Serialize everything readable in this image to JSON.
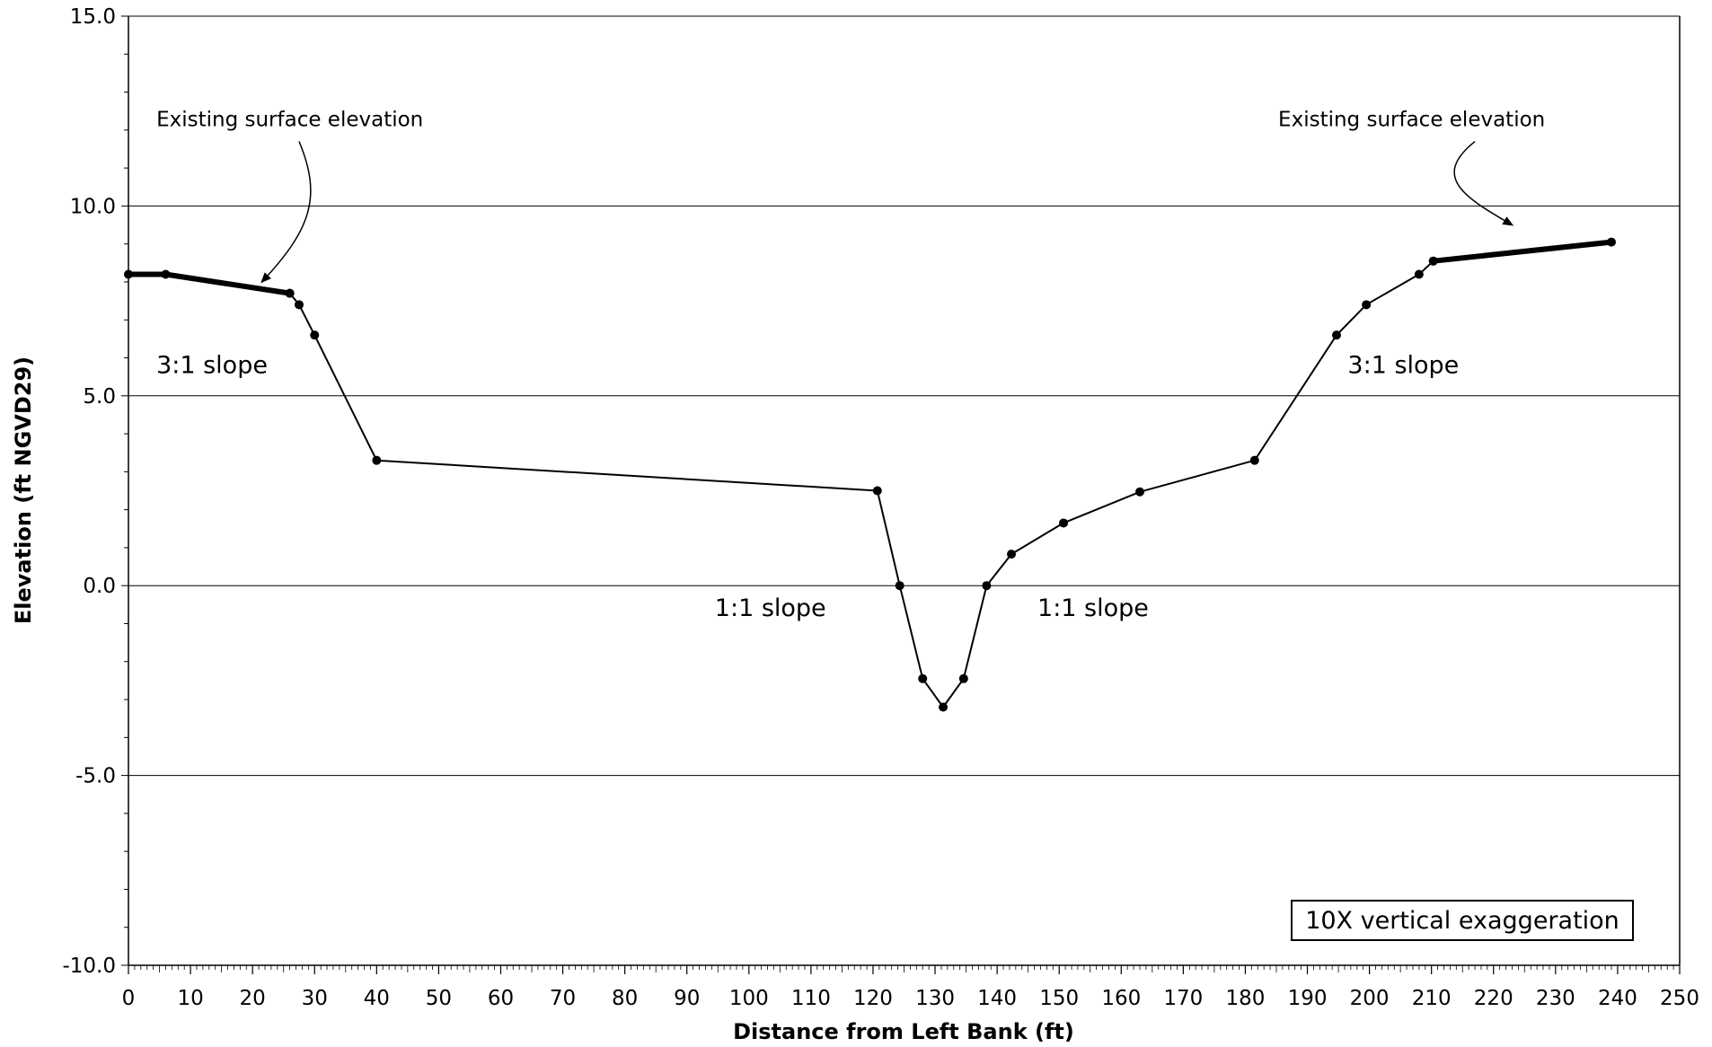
{
  "chart_data": {
    "type": "line",
    "title": "",
    "xlabel": "Distance from Left Bank (ft)",
    "ylabel": "Elevation (ft NGVD29)",
    "xlim": [
      0,
      250
    ],
    "ylim": [
      -10,
      15
    ],
    "x_ticks": [
      0,
      10,
      20,
      30,
      40,
      50,
      60,
      70,
      80,
      90,
      100,
      110,
      120,
      130,
      140,
      150,
      160,
      170,
      180,
      190,
      200,
      210,
      220,
      230,
      240,
      250
    ],
    "x_tick_labels": [
      "0",
      "10",
      "20",
      "30",
      "40",
      "50",
      "60",
      "70",
      "80",
      "90",
      "100",
      "110",
      "120",
      "130",
      "140",
      "150",
      "160",
      "170",
      "180",
      "190",
      "200",
      "210",
      "220",
      "230",
      "240",
      "250"
    ],
    "y_ticks": [
      -10,
      -5,
      0,
      5,
      10,
      15
    ],
    "y_tick_labels": [
      "-10.0",
      "-5.0",
      "0.0",
      "5.0",
      "10.0",
      "15.0"
    ],
    "grid": "horizontal",
    "series": [
      {
        "role": "existing-left",
        "values": [
          [
            0,
            8.2
          ],
          [
            6,
            8.2
          ],
          [
            26,
            7.7
          ]
        ]
      },
      {
        "role": "design-section",
        "values": [
          [
            26,
            7.7
          ],
          [
            27.5,
            7.4
          ],
          [
            30,
            6.6
          ],
          [
            40,
            3.3
          ],
          [
            120.7,
            2.5
          ],
          [
            124.3,
            0.0
          ],
          [
            128,
            -2.45
          ],
          [
            131.3,
            -3.2
          ],
          [
            134.6,
            -2.45
          ],
          [
            138.3,
            0.0
          ],
          [
            142.3,
            0.83
          ],
          [
            150.7,
            1.65
          ],
          [
            163,
            2.47
          ],
          [
            181.5,
            3.3
          ],
          [
            194.7,
            6.6
          ],
          [
            199.5,
            7.4
          ],
          [
            208,
            8.2
          ],
          [
            210.3,
            8.55
          ]
        ]
      },
      {
        "role": "existing-right",
        "values": [
          [
            210.3,
            8.55
          ],
          [
            239,
            9.05
          ]
        ]
      }
    ],
    "annotations": [
      {
        "id": "existing-left",
        "text": "Existing surface elevation",
        "x": 4.5,
        "y": 12.1,
        "arrow_from": [
          27.5,
          11.7
        ],
        "arrow_to": [
          21.5,
          8.0
        ]
      },
      {
        "id": "existing-right",
        "text": "Existing surface elevation",
        "x": 185.3,
        "y": 12.1,
        "arrow_from": [
          217,
          11.7
        ],
        "arrow_to": [
          223,
          9.5
        ]
      },
      {
        "id": "slope-left",
        "text": "3:1 slope",
        "x": 4.5,
        "y": 5.6
      },
      {
        "id": "slope-right",
        "text": "3:1 slope",
        "x": 196.5,
        "y": 5.6
      },
      {
        "id": "slope-mid-left",
        "text": "1:1 slope",
        "x": 94.5,
        "y": -0.8
      },
      {
        "id": "slope-mid-right",
        "text": "1:1 slope",
        "x": 146.5,
        "y": -0.8
      }
    ],
    "boxed_note": "10X vertical exaggeration"
  },
  "colors": {
    "line": "#000000",
    "grid": "#000000",
    "background": "#ffffff"
  }
}
